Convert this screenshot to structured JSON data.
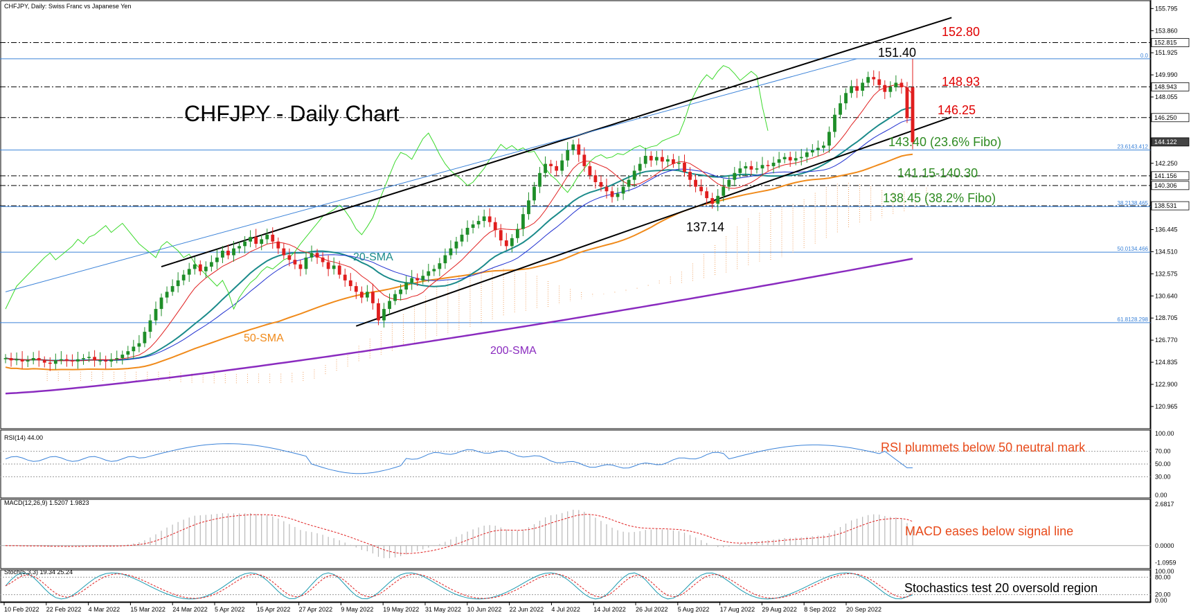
{
  "window": {
    "title": "CHFJPY, Daily:  Swiss Franc vs Japanese Yen"
  },
  "chart_data": {
    "type": "line",
    "title": "CHFJPY - Daily Chart",
    "main": {
      "y_ticks": [
        155.795,
        153.86,
        151.925,
        149.99,
        148.055,
        146.12,
        144.185,
        142.25,
        140.315,
        138.38,
        136.445,
        134.51,
        132.575,
        130.64,
        128.705,
        126.77,
        124.835,
        122.9,
        120.965
      ],
      "ylim": [
        119.2,
        156.3
      ],
      "price_boxes": [
        "152.815",
        "148.943",
        "146.250",
        "144.122",
        "141.156",
        "140.306",
        "138.531"
      ],
      "levels": [
        {
          "label": "152.80",
          "value": 152.8,
          "color": "#e00000"
        },
        {
          "label": "148.93",
          "value": 148.93,
          "color": "#e00000"
        },
        {
          "label": "146.25",
          "value": 146.25,
          "color": "#e00000"
        },
        {
          "label": "143.40 (23.6% Fibo)",
          "value": 143.4,
          "color": "#2e8b22"
        },
        {
          "label": "141.15-140.30",
          "value": 141.15,
          "color": "#2e8b22"
        },
        {
          "label": "138.45 (38.2% Fibo)",
          "value": 138.45,
          "color": "#2e8b22"
        }
      ],
      "fibo": [
        {
          "label": "0.0",
          "value": 151.4
        },
        {
          "label": "23.6143.412",
          "value": 143.412
        },
        {
          "label": "38.2138.465",
          "value": 138.465
        },
        {
          "label": "50.0134.466",
          "value": 134.466
        },
        {
          "label": "61.8128.298",
          "value": 128.298
        }
      ],
      "annotations": [
        {
          "text": "151.40",
          "value": 151.4
        },
        {
          "text": "137.14",
          "value": 137.14
        }
      ],
      "series": [
        {
          "name": "20-SMA",
          "color": "#1a8a8a"
        },
        {
          "name": "50-SMA",
          "color": "#f08a1a"
        },
        {
          "name": "200-SMA",
          "color": "#8a2bbf"
        }
      ],
      "close": [
        125.2,
        125.0,
        125.1,
        124.9,
        125.0,
        125.2,
        125.0,
        124.8,
        124.7,
        125.0,
        125.1,
        125.0,
        124.9,
        125.1,
        125.2,
        125.3,
        125.0,
        125.0,
        124.9,
        125.1,
        125.2,
        125.5,
        125.8,
        126.2,
        126.5,
        127.5,
        128.5,
        129.5,
        130.5,
        131.0,
        131.5,
        132.0,
        132.5,
        133.0,
        133.4,
        132.8,
        133.2,
        133.6,
        134.0,
        134.6,
        134.2,
        134.8,
        135.0,
        135.4,
        135.8,
        135.2,
        135.6,
        136.0,
        135.4,
        134.8,
        134.2,
        133.8,
        133.4,
        133.0,
        134.0,
        134.4,
        134.0,
        133.6,
        133.0,
        133.3,
        132.5,
        132.0,
        131.5,
        131.0,
        130.5,
        131.0,
        130.0,
        128.5,
        129.5,
        130.2,
        130.8,
        131.2,
        131.8,
        132.2,
        132.0,
        132.4,
        132.8,
        133.0,
        133.5,
        134.2,
        134.8,
        135.4,
        136.0,
        136.6,
        136.9,
        137.2,
        137.6,
        137.1,
        136.4,
        135.5,
        135.0,
        135.7,
        136.5,
        137.8,
        139.0,
        140.2,
        141.4,
        142.2,
        142.0,
        141.6,
        142.5,
        143.4,
        143.9,
        143.0,
        142.0,
        141.2,
        140.6,
        140.2,
        139.8,
        139.3,
        139.6,
        140.2,
        140.8,
        141.6,
        142.2,
        142.9,
        142.5,
        142.8,
        142.4,
        142.6,
        142.2,
        142.3,
        141.5,
        140.8,
        140.2,
        139.8,
        139.2,
        138.7,
        139.4,
        140.2,
        140.8,
        141.4,
        141.8,
        142.0,
        141.7,
        141.8,
        142.1,
        142.0,
        142.3,
        142.6,
        142.8,
        142.5,
        142.7,
        142.8,
        143.2,
        143.4,
        143.6,
        143.8,
        145.0,
        146.5,
        147.5,
        148.4,
        149.0,
        148.6,
        149.3,
        149.8,
        149.6,
        149.1,
        148.5,
        148.9,
        149.3,
        148.9,
        146.2,
        144.1
      ]
    },
    "rsi": {
      "label": "RSI(14) 44.00",
      "y_ticks": [
        100.0,
        70.0,
        50.0,
        30.0,
        0.0
      ],
      "ylim": [
        0,
        100
      ],
      "annotation": "RSI plummets below 50 neutral mark"
    },
    "macd": {
      "label": "MACD(12,26,9) 1.5207 1.9823",
      "y_ticks": [
        2.6817,
        0.0,
        -1.0959
      ],
      "ylim": [
        -1.35,
        2.85
      ],
      "annotation": "MACD eases below signal line"
    },
    "stoch": {
      "label": "Stoch(5,3,3) 19.34 25.24",
      "y_ticks": [
        100.0,
        80.0,
        20.0,
        0.0
      ],
      "ylim": [
        0,
        100
      ],
      "annotation": "Stochastics test 20 oversold region"
    },
    "x_labels": [
      "10 Feb 2022",
      "22 Feb 2022",
      "4 Mar 2022",
      "15 Mar 2022",
      "24 Mar 2022",
      "5 Apr 2022",
      "15 Apr 2022",
      "27 Apr 2022",
      "9 May 2022",
      "19 May 2022",
      "31 May 2022",
      "10 Jun 2022",
      "22 Jun 2022",
      "4 Jul 2022",
      "14 Jul 2022",
      "26 Jul 2022",
      "5 Aug 2022",
      "17 Aug 2022",
      "29 Aug 2022",
      "8 Sep 2022",
      "20 Sep 2022"
    ]
  }
}
